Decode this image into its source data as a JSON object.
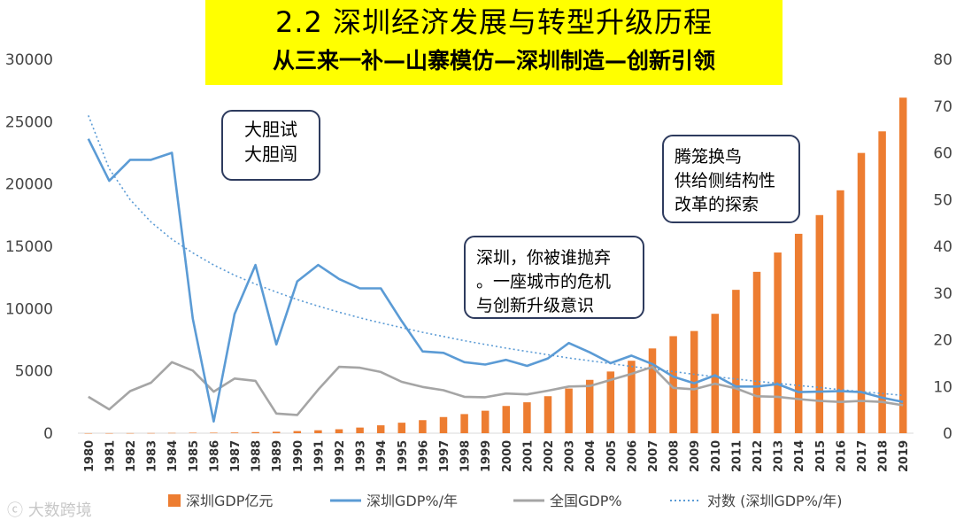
{
  "title": {
    "line1": "2.2 深圳经济发展与转型升级历程",
    "line2": "从三来一补—山寨模仿—深圳制造—创新引领"
  },
  "callouts": [
    {
      "lines": [
        "大胆试",
        "大胆闯"
      ]
    },
    {
      "lines": [
        "深圳，你被谁抛弃",
        "。一座城市的危机",
        "与创新升级意识"
      ]
    },
    {
      "lines": [
        "腾笼换鸟",
        "供给侧结构性",
        "改革的探索"
      ]
    }
  ],
  "watermark": "大数跨境",
  "colors": {
    "bar": "#ed7d31",
    "sz_line": "#5b9bd5",
    "cn_line": "#a5a5a5",
    "trend": "#5b9bd5"
  },
  "chart_data": {
    "type": "bar",
    "categories": [
      "1980",
      "1981",
      "1982",
      "1983",
      "1984",
      "1985",
      "1986",
      "1987",
      "1988",
      "1989",
      "1990",
      "1991",
      "1992",
      "1993",
      "1994",
      "1995",
      "1996",
      "1997",
      "1998",
      "1999",
      "2000",
      "2001",
      "2002",
      "2003",
      "2004",
      "2005",
      "2006",
      "2007",
      "2008",
      "2009",
      "2010",
      "2011",
      "2012",
      "2013",
      "2014",
      "2015",
      "2016",
      "2017",
      "2018",
      "2019"
    ],
    "y_left": {
      "min": 0,
      "max": 30000,
      "ticks": [
        0,
        5000,
        10000,
        15000,
        20000,
        25000,
        30000
      ]
    },
    "y_right": {
      "min": 0,
      "max": 80,
      "ticks": [
        0,
        10,
        20,
        30,
        40,
        50,
        60,
        70,
        80
      ]
    },
    "series": [
      {
        "name": "深圳GDP亿元",
        "kind": "bar",
        "axis": "left",
        "values": [
          3,
          5,
          8,
          13,
          23,
          39,
          42,
          56,
          87,
          116,
          172,
          237,
          317,
          453,
          634,
          843,
          1048,
          1297,
          1535,
          1804,
          2187,
          2482,
          2970,
          3586,
          4282,
          4951,
          5814,
          6802,
          7787,
          8201,
          9582,
          11506,
          12950,
          14500,
          16002,
          17503,
          19493,
          22490,
          24222,
          26927
        ]
      },
      {
        "name": "深圳GDP%/年",
        "kind": "line",
        "axis": "right",
        "values": [
          63,
          54,
          58.5,
          58.5,
          60,
          24.5,
          2.5,
          25.5,
          36,
          19,
          32.5,
          36,
          33,
          31,
          31,
          24,
          17.5,
          17.2,
          15.2,
          14.7,
          15.7,
          14.4,
          16,
          19.3,
          17.3,
          15,
          16.6,
          14.8,
          12.1,
          10.7,
          12.4,
          10,
          10,
          10.5,
          8.8,
          8.9,
          9,
          8.8,
          7.6,
          6.7
        ]
      },
      {
        "name": "全国GDP%",
        "kind": "line",
        "axis": "right",
        "values": [
          7.8,
          5.1,
          9,
          10.8,
          15.2,
          13.4,
          8.9,
          11.7,
          11.2,
          4.2,
          3.9,
          9.3,
          14.2,
          14,
          13.1,
          11,
          9.9,
          9.2,
          7.8,
          7.7,
          8.5,
          8.3,
          9.1,
          10,
          10.1,
          11.4,
          12.7,
          14.2,
          9.7,
          9.4,
          10.6,
          9.6,
          7.9,
          7.8,
          7.3,
          6.9,
          6.7,
          6.9,
          6.7,
          6
        ]
      },
      {
        "name": "对数 (深圳GDP%/年)",
        "kind": "trend",
        "axis": "right",
        "values": [
          68,
          56.6,
          50,
          45.2,
          41.5,
          38.6,
          36,
          33.8,
          31.9,
          30.2,
          28.6,
          27.2,
          25.9,
          24.7,
          23.6,
          22.6,
          21.6,
          20.7,
          19.8,
          19,
          18.2,
          17.5,
          16.8,
          16.1,
          15.5,
          14.9,
          14.3,
          13.7,
          13.2,
          12.6,
          12.1,
          11.6,
          11.1,
          10.7,
          10.2,
          9.8,
          9.3,
          8.9,
          8.5,
          8.1
        ]
      }
    ],
    "legend": [
      "深圳GDP亿元",
      "深圳GDP%/年",
      "全国GDP%",
      "对数 (深圳GDP%/年)"
    ],
    "legend_position": "bottom"
  }
}
